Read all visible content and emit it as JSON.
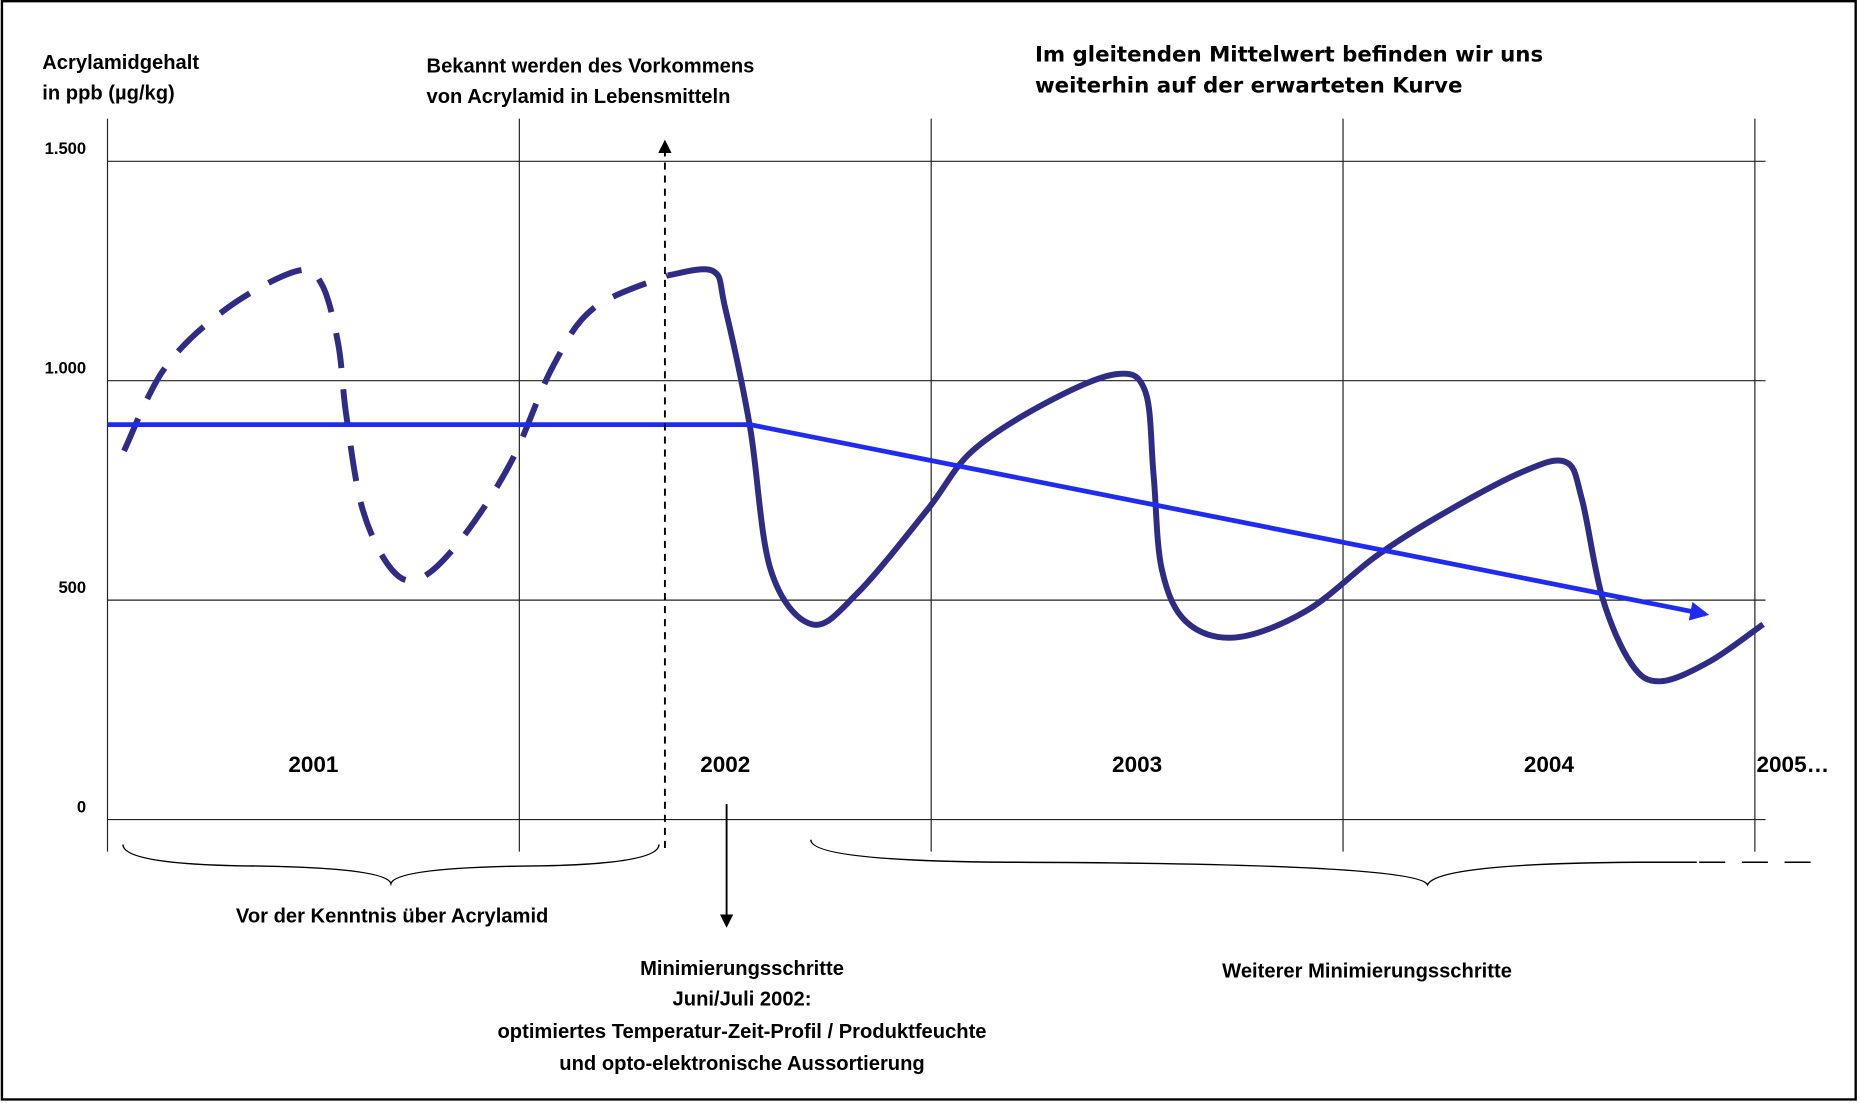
{
  "chart_data": {
    "type": "line",
    "y_label": [
      "Acrylamidgehalt",
      "in ppb (µg/kg)"
    ],
    "headline": [
      "Im gleitenden Mittelwert befinden wir uns",
      "weiterhin auf der erwarteten Kurve"
    ],
    "headline_color": "#ff3300",
    "event_note": [
      "Bekannt werden des Vorkommens",
      "von Acrylamid in Lebensmitteln"
    ],
    "before_note": "Vor der Kenntnis über Acrylamid",
    "step_note": [
      "Minimierungsschritte",
      "Juni/Juli 2002:",
      "optimiertes Temperatur-Zeit-Profil / Produktfeuchte",
      "und opto-elektronische Aussortierung"
    ],
    "after_note": "Weiterer Minimierungsschritte",
    "ylim": [
      0,
      1500
    ],
    "yticks": [
      0,
      500,
      {
        "value": 1000,
        "label": "1.000"
      },
      {
        "value": 1500,
        "label": "1.500"
      }
    ],
    "xlim": [
      2001,
      2005
    ],
    "xticks": [
      {
        "value": 2001,
        "label": "2001"
      },
      {
        "value": 2002,
        "label": "2002"
      },
      {
        "value": 2003,
        "label": "2003"
      },
      {
        "value": 2004,
        "label": "2004"
      },
      {
        "value": 2005,
        "label": "2005…"
      }
    ],
    "grid": true,
    "series": [
      {
        "color": "#2e2c84",
        "style": "dashed",
        "x": [
          2001.04,
          2001.14,
          2001.29,
          2001.46,
          2001.52,
          2001.56,
          2001.58,
          2001.62,
          2001.69,
          2001.76,
          2001.86,
          2001.98,
          2002.08,
          2002.18,
          2002.36
        ],
        "values": [
          840,
          1030,
          1165,
          1250,
          1220,
          1085,
          920,
          705,
          570,
          550,
          640,
          815,
          1030,
          1165,
          1240
        ]
      },
      {
        "color": "#2e2c84",
        "style": "solid",
        "x": [
          2002.36,
          2002.47,
          2002.5,
          2002.56,
          2002.61,
          2002.71,
          2002.82,
          2002.99,
          2003.1,
          2003.28,
          2003.45,
          2003.52,
          2003.54,
          2003.56,
          2003.62,
          2003.74,
          2003.91,
          2004.08,
          2004.23,
          2004.43,
          2004.54,
          2004.58,
          2004.63,
          2004.7,
          2004.77,
          2004.89,
          2005.02
        ],
        "values": [
          1240,
          1250,
          1165,
          895,
          570,
          445,
          515,
          705,
          840,
          950,
          1015,
          975,
          785,
          570,
          450,
          415,
          475,
          600,
          690,
          790,
          815,
          730,
          505,
          355,
          315,
          360,
          445
        ]
      },
      {
        "color": "#1f2cf0",
        "style": "arrow",
        "x": [
          2001.0,
          2002.56,
          2004.88
        ],
        "values": [
          900,
          900,
          468
        ]
      }
    ]
  }
}
